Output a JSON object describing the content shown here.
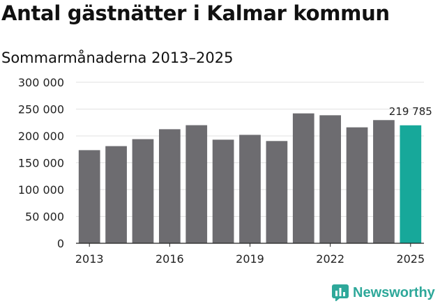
{
  "title": "Antal gästnätter i Kalmar kommun",
  "subtitle": "Sommarmånaderna 2013–2025",
  "brand": "Newsworthy",
  "colors": {
    "bar": "#6d6c70",
    "highlight": "#17a89a",
    "grid": "#e2e2e2",
    "axis": "#222222",
    "brand": "#2ea89a"
  },
  "chart_data": {
    "type": "bar",
    "categories": [
      "2013",
      "2014",
      "2015",
      "2016",
      "2017",
      "2018",
      "2019",
      "2020",
      "2021",
      "2022",
      "2023",
      "2024",
      "2025"
    ],
    "values": [
      173500,
      181000,
      194000,
      212500,
      220000,
      193000,
      202000,
      190500,
      242000,
      238500,
      216000,
      229500,
      219785
    ],
    "highlight_index": 12,
    "data_label": "219 785",
    "ylim": [
      0,
      300000
    ],
    "y_ticks": [
      0,
      50000,
      100000,
      150000,
      200000,
      250000,
      300000
    ],
    "y_tick_labels": [
      "0",
      "50 000",
      "100 000",
      "150 000",
      "200 000",
      "250 000",
      "300 000"
    ],
    "x_tick_labels": [
      "2013",
      "2016",
      "2019",
      "2022",
      "2025"
    ],
    "x_tick_indices": [
      0,
      3,
      6,
      9,
      12
    ],
    "grid": true,
    "legend": "none",
    "xlabel": "",
    "ylabel": ""
  }
}
